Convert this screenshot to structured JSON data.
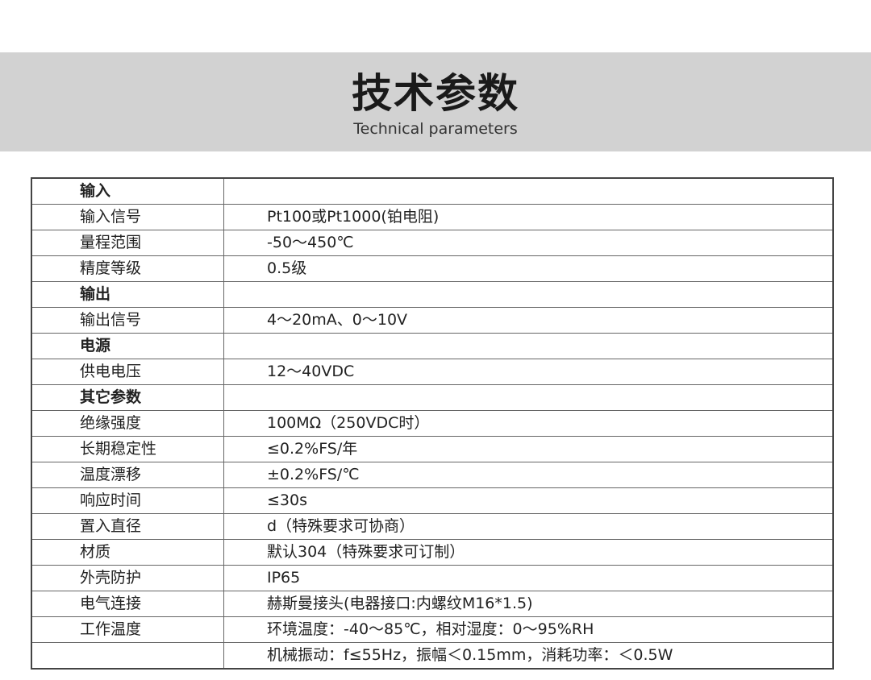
{
  "header": {
    "title": "技术参数",
    "subtitle": "Technical parameters"
  },
  "rows": [
    {
      "label": "输入",
      "value": "",
      "section": true
    },
    {
      "label": "输入信号",
      "value": "Pt100或Pt1000(铂电阻)"
    },
    {
      "label": "量程范围",
      "value": "-50～450℃"
    },
    {
      "label": "精度等级",
      "value": "0.5级"
    },
    {
      "label": "输出",
      "value": "",
      "section": true
    },
    {
      "label": "输出信号",
      "value": "4～20mA、0～10V"
    },
    {
      "label": "电源",
      "value": "",
      "section": true
    },
    {
      "label": "供电电压",
      "value": "12～40VDC"
    },
    {
      "label": "其它参数",
      "value": "",
      "section": true
    },
    {
      "label": "绝缘强度",
      "value": "100MΩ（250VDC时）"
    },
    {
      "label": "长期稳定性",
      "value": "≤0.2%FS/年"
    },
    {
      "label": "温度漂移",
      "value": "±0.2%FS/℃"
    },
    {
      "label": "响应时间",
      "value": "≤30s"
    },
    {
      "label": "置入直径",
      "value": "d（特殊要求可协商）"
    },
    {
      "label": "材质",
      "value": "默认304（特殊要求可订制）"
    },
    {
      "label": "外壳防护",
      "value": "IP65"
    },
    {
      "label": "电气连接",
      "value": "赫斯曼接头(电器接口:内螺纹M16*1.5)"
    },
    {
      "label": "工作温度",
      "value": "环境温度：-40～85℃，相对湿度：0～95%RH"
    },
    {
      "label": "",
      "value": "机械振动：f≤55Hz，振幅＜0.15mm，消耗功率：＜0.5W"
    }
  ]
}
